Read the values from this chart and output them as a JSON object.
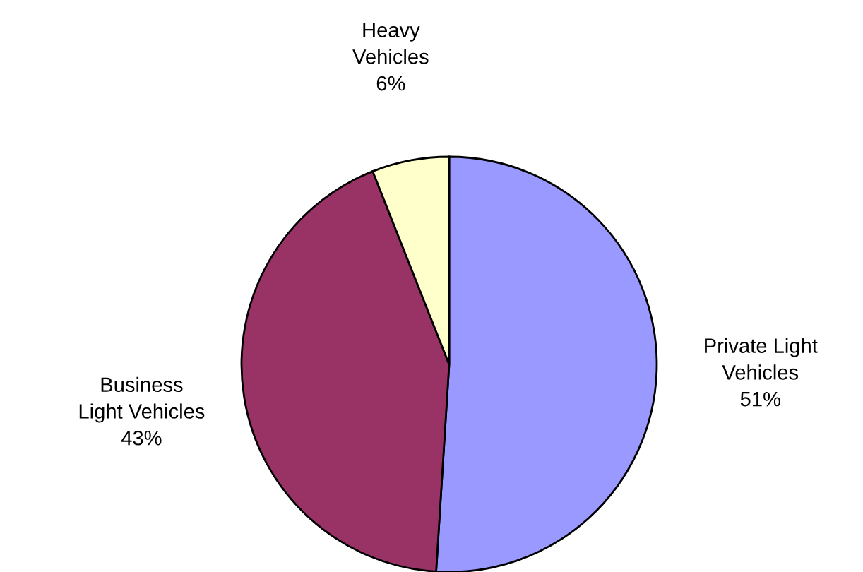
{
  "chart_data": {
    "type": "pie",
    "categories": [
      "Private Light\nVehicles",
      "Business\nLight Vehicles",
      "Heavy\nVehicles"
    ],
    "values": [
      51,
      43,
      6
    ],
    "colors": [
      "#9999ff",
      "#993366",
      "#ffffcc"
    ],
    "value_labels": [
      "51%",
      "43%",
      "6%"
    ]
  }
}
